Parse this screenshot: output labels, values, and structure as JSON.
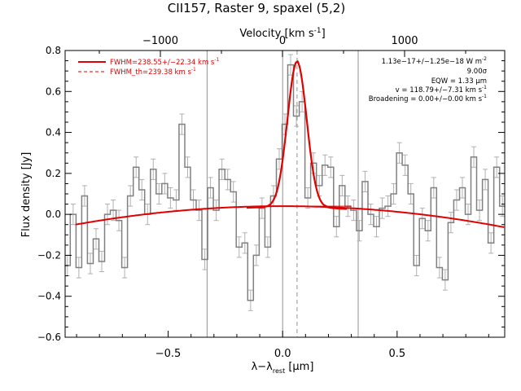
{
  "chart_data": {
    "type": "line",
    "title": "CII157, Raster 9, spaxel (5,2)",
    "xlabel_main": "λ−λ",
    "xlabel_sub": "rest",
    "xlabel_unit": "[μm]",
    "ylabel": "Flux density [Jy]",
    "top_axis_label": "Velocity [km s",
    "top_axis_sup": "-1",
    "top_axis_close": "]",
    "xlim": [
      -0.95,
      0.97
    ],
    "ylim": [
      -0.6,
      0.8
    ],
    "top_xlim": [
      -1780,
      1820
    ],
    "x_ticks": [
      -0.5,
      0.0,
      0.5
    ],
    "x_tick_labels": [
      "−0.5",
      "0.0",
      "0.5"
    ],
    "y_ticks": [
      -0.6,
      -0.4,
      -0.2,
      0.0,
      0.2,
      0.4,
      0.6,
      0.8
    ],
    "y_tick_labels": [
      "−0.6",
      "−0.4",
      "−0.2",
      "0.0",
      "0.2",
      "0.4",
      "0.6",
      "0.8"
    ],
    "top_ticks": [
      -1000,
      0,
      1000
    ],
    "top_tick_labels": [
      "−1000",
      "0",
      "1000"
    ],
    "vertical_lines": [
      -0.33,
      0.0,
      0.33
    ],
    "center_line": 0.063,
    "spectrum": {
      "x": [
        -0.94,
        -0.915,
        -0.89,
        -0.865,
        -0.84,
        -0.815,
        -0.79,
        -0.765,
        -0.74,
        -0.715,
        -0.69,
        -0.665,
        -0.64,
        -0.615,
        -0.59,
        -0.565,
        -0.54,
        -0.515,
        -0.49,
        -0.465,
        -0.44,
        -0.415,
        -0.39,
        -0.365,
        -0.34,
        -0.315,
        -0.29,
        -0.265,
        -0.24,
        -0.215,
        -0.19,
        -0.165,
        -0.14,
        -0.115,
        -0.09,
        -0.065,
        -0.04,
        -0.015,
        0.01,
        0.035,
        0.06,
        0.085,
        0.11,
        0.135,
        0.16,
        0.185,
        0.21,
        0.235,
        0.26,
        0.285,
        0.31,
        0.335,
        0.36,
        0.385,
        0.41,
        0.435,
        0.46,
        0.485,
        0.51,
        0.535,
        0.56,
        0.585,
        0.61,
        0.635,
        0.66,
        0.685,
        0.71,
        0.735,
        0.76,
        0.785,
        0.81,
        0.835,
        0.86,
        0.885,
        0.91,
        0.935,
        0.96
      ],
      "y": [
        -0.25,
        0.0,
        -0.26,
        0.09,
        -0.24,
        -0.12,
        -0.23,
        0.0,
        0.02,
        -0.03,
        -0.26,
        0.09,
        0.23,
        0.12,
        0.0,
        0.22,
        0.1,
        0.15,
        0.08,
        0.07,
        0.44,
        0.23,
        0.07,
        0.02,
        -0.22,
        0.13,
        0.02,
        0.22,
        0.17,
        0.11,
        -0.16,
        -0.14,
        -0.42,
        -0.2,
        0.03,
        -0.16,
        0.09,
        0.27,
        0.44,
        0.73,
        0.48,
        0.55,
        0.08,
        0.25,
        0.14,
        0.24,
        0.23,
        -0.06,
        0.14,
        0.04,
        0.02,
        -0.08,
        0.16,
        0.0,
        -0.06,
        0.03,
        0.04,
        0.1,
        0.3,
        0.24,
        0.1,
        -0.25,
        -0.02,
        -0.08,
        0.13,
        -0.26,
        -0.32,
        -0.04,
        0.07,
        0.13,
        0.0,
        0.28,
        0.02,
        0.17,
        -0.14,
        0.23,
        0.04
      ],
      "error": 0.05
    },
    "model": {
      "amplitude": 0.71,
      "center": 0.063,
      "sigma": 0.042,
      "baseline_peak": 0.04,
      "baseline_center": 0.0,
      "baseline_curvature": 0.11
    },
    "legend": [
      {
        "label": "FWHM=238.55+/−22.34 km s",
        "sup": "-1",
        "style": "solid"
      },
      {
        "label": "FWHM_th=239.38 km s",
        "sup": "-1",
        "style": "dashed"
      }
    ],
    "annotations": [
      {
        "text": "1.13e−17+/−1.25e−18 W m",
        "sup": "-2"
      },
      {
        "text": "9.00σ",
        "sup": ""
      },
      {
        "text": "EQW = 1.33 μm",
        "sup": ""
      },
      {
        "text": "v = 118.79+/−7.31 km s",
        "sup": "-1"
      },
      {
        "text": "Broadening = 0.00+/−0.00 km s",
        "sup": "-1"
      }
    ],
    "colors": {
      "data": "#808080",
      "fit": "#e00000",
      "axes": "#000000",
      "lines": "#909090"
    }
  }
}
